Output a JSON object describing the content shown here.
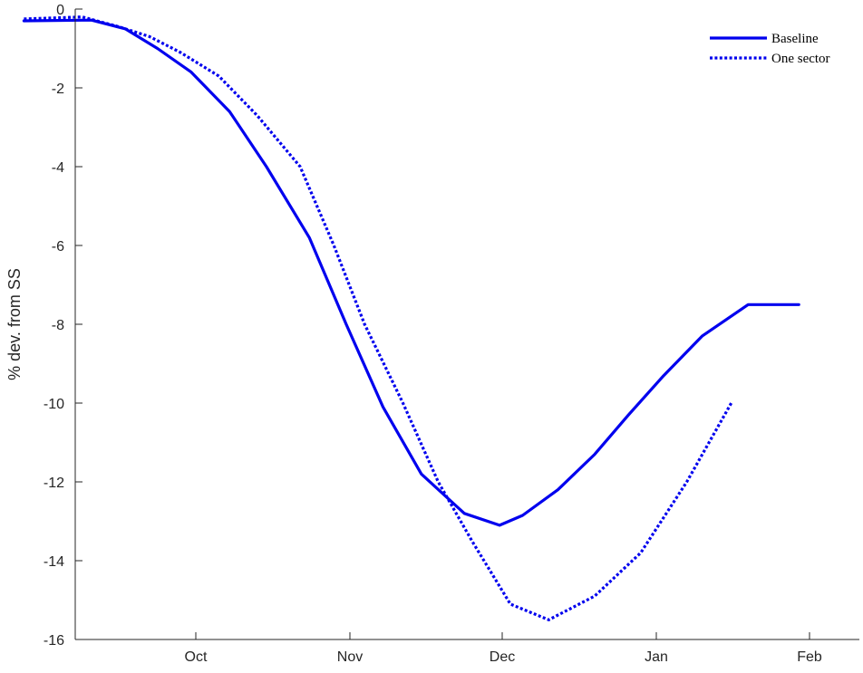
{
  "chart_data": {
    "type": "line",
    "title": "",
    "xlabel": "",
    "ylabel": "% dev. from SS",
    "x_ticks": [
      "Oct",
      "Nov",
      "Dec",
      "Jan",
      "Feb"
    ],
    "ylim": [
      -16,
      0
    ],
    "y_ticks": [
      0,
      -2,
      -4,
      -6,
      -8,
      -10,
      -12,
      -14,
      -16
    ],
    "grid": false,
    "legend_position": "top-right",
    "series": [
      {
        "name": "Baseline",
        "style": "solid",
        "color": "#0000ee",
        "x": [
          -1.12,
          -0.68,
          -0.46,
          -0.25,
          -0.03,
          0.22,
          0.46,
          0.74,
          0.98,
          1.22,
          1.47,
          1.75,
          1.98,
          2.13,
          2.36,
          2.6,
          2.82,
          3.05,
          3.3,
          3.6,
          3.93
        ],
        "y": [
          -0.3,
          -0.28,
          -0.5,
          -1.0,
          -1.6,
          -2.6,
          -4.0,
          -5.8,
          -8.0,
          -10.1,
          -11.8,
          -12.8,
          -13.1,
          -12.85,
          -12.2,
          -11.3,
          -10.3,
          -9.3,
          -8.3,
          -7.5,
          -7.5
        ]
      },
      {
        "name": "One sector",
        "style": "dotted",
        "color": "#0000ee",
        "x": [
          -1.12,
          -0.74,
          -0.5,
          -0.3,
          -0.1,
          0.15,
          0.4,
          0.68,
          0.9,
          1.1,
          1.35,
          1.58,
          1.8,
          2.05,
          2.3,
          2.6,
          2.9,
          3.2,
          3.49
        ],
        "y": [
          -0.25,
          -0.2,
          -0.45,
          -0.7,
          -1.1,
          -1.7,
          -2.7,
          -4.0,
          -6.0,
          -8.0,
          -10.0,
          -12.0,
          -13.5,
          -15.1,
          -15.5,
          -14.9,
          -13.8,
          -12.0,
          -10.0
        ]
      }
    ]
  }
}
